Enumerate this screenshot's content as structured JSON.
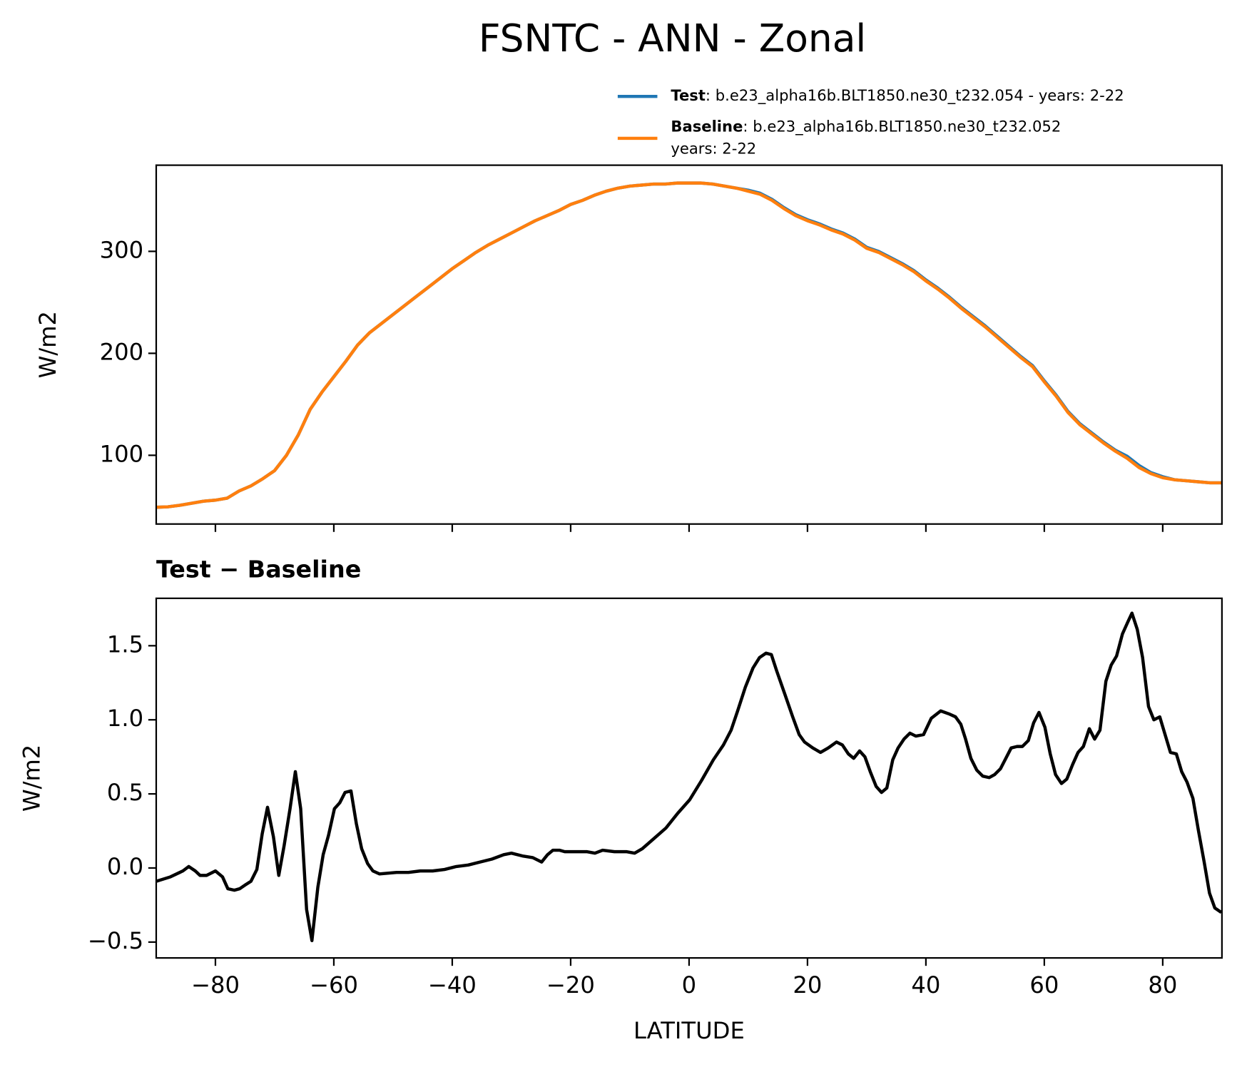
{
  "title": "FSNTC - ANN - Zonal",
  "chart_data": [
    {
      "type": "line",
      "ylabel": "W/m2",
      "x": [
        -90,
        -88,
        -86,
        -84,
        -82,
        -80,
        -78,
        -76,
        -74,
        -72,
        -70,
        -68,
        -66,
        -64,
        -62,
        -60,
        -58,
        -56,
        -54,
        -52,
        -50,
        -48,
        -46,
        -44,
        -42,
        -40,
        -38,
        -36,
        -34,
        -32,
        -30,
        -28,
        -26,
        -24,
        -22,
        -20,
        -18,
        -16,
        -14,
        -12,
        -10,
        -8,
        -6,
        -4,
        -2,
        0,
        2,
        4,
        6,
        8,
        10,
        12,
        14,
        16,
        18,
        20,
        22,
        24,
        26,
        28,
        30,
        32,
        34,
        36,
        38,
        40,
        42,
        44,
        46,
        48,
        50,
        52,
        54,
        56,
        58,
        60,
        62,
        64,
        66,
        68,
        70,
        72,
        74,
        76,
        78,
        80,
        82,
        84,
        86,
        88,
        90
      ],
      "series": [
        {
          "name": "Test",
          "label_lines": [
            ": b.e23_alpha16b.BLT1850.ne30_t232.054 - years: 2-22"
          ],
          "color": "#1f77b4",
          "values": [
            49,
            49.5,
            51,
            53,
            55,
            56,
            58,
            65,
            70,
            77,
            85,
            100,
            120,
            145,
            162,
            177,
            192,
            208,
            220,
            229,
            238,
            247,
            256,
            265,
            274,
            283,
            291,
            299,
            306,
            312,
            318,
            324,
            330,
            335,
            340,
            346,
            350,
            355,
            359,
            362,
            364,
            365,
            366,
            366,
            367,
            367,
            367,
            366,
            364,
            362,
            360,
            357,
            351,
            343,
            336,
            331,
            327,
            322,
            318,
            312,
            304,
            300,
            294,
            288,
            281,
            272,
            264,
            255,
            245,
            236,
            227,
            217,
            207,
            197,
            188,
            173,
            159,
            143,
            131,
            122,
            113,
            105,
            99,
            90,
            83,
            79,
            76,
            75,
            74,
            73,
            73
          ]
        },
        {
          "name": "Baseline",
          "label_lines": [
            ": b.e23_alpha16b.BLT1850.ne30_t232.052",
            "years: 2-22"
          ],
          "color": "#ff7f0e",
          "values": [
            49,
            49.5,
            51,
            53,
            55,
            56,
            58,
            65,
            70,
            77,
            85,
            100,
            120,
            145,
            162,
            177,
            192,
            208,
            220,
            229,
            238,
            247,
            256,
            265,
            274,
            283,
            291,
            299,
            306,
            312,
            318,
            324,
            330,
            335,
            340,
            346,
            350,
            355,
            359,
            362,
            364,
            365,
            366,
            366,
            367,
            367,
            367,
            366,
            364,
            362,
            359,
            356,
            350,
            342,
            335,
            330,
            326,
            321,
            317,
            311,
            303,
            299,
            293,
            287,
            280,
            271,
            263,
            254,
            244,
            235,
            226,
            216,
            206,
            196,
            187,
            172,
            158,
            142,
            130,
            121,
            112,
            104,
            97,
            88,
            82,
            78,
            76,
            75,
            74,
            73,
            73
          ]
        }
      ],
      "xlim": [
        -90,
        90
      ],
      "ylim": [
        32.6,
        384.5
      ],
      "xticks": [
        -80,
        -60,
        -40,
        -20,
        0,
        20,
        40,
        60,
        80
      ],
      "show_xtick_labels": false,
      "yticks": [
        100,
        200,
        300
      ],
      "legend": "upper right"
    },
    {
      "type": "line",
      "title": "Test − Baseline",
      "xlabel": "LATITUDE",
      "ylabel": "W/m2",
      "x": [
        -90,
        -87.6,
        -85.5,
        -84.5,
        -83.4,
        -82.6,
        -81.5,
        -80,
        -78.8,
        -77.9,
        -76.8,
        -75.9,
        -74.8,
        -74,
        -73,
        -72.1,
        -71.2,
        -70.2,
        -69.3,
        -68.4,
        -67.4,
        -66.5,
        -65.6,
        -64.6,
        -63.7,
        -62.7,
        -61.8,
        -60.9,
        -59.9,
        -59,
        -58.1,
        -57.1,
        -56.2,
        -55.3,
        -54.3,
        -53.4,
        -52.3,
        -49.4,
        -47.4,
        -45.4,
        -43.3,
        -41.3,
        -39.3,
        -37.3,
        -35.3,
        -33.3,
        -31.3,
        -30,
        -28,
        -26.4,
        -24.9,
        -23.9,
        -23,
        -21.9,
        -21,
        -19.3,
        -17.3,
        -15.9,
        -14.6,
        -12.6,
        -10.6,
        -9.2,
        -7.9,
        -5.9,
        -3.9,
        -1.9,
        0.1,
        2.1,
        4.1,
        5.8,
        7.1,
        8.2,
        9.5,
        10.8,
        11.9,
        13,
        13.9,
        14.8,
        16.2,
        17.5,
        18.6,
        19.5,
        20.9,
        22.2,
        23.5,
        24.9,
        25.9,
        26.9,
        27.8,
        28.8,
        29.7,
        30.6,
        31.6,
        32.5,
        33.4,
        34.4,
        35.3,
        36.3,
        37.3,
        38.3,
        39.6,
        40.9,
        42.5,
        43.9,
        45,
        45.9,
        46.7,
        47.6,
        48.6,
        49.6,
        50.7,
        51.6,
        52.6,
        53.5,
        54.4,
        55.4,
        56.3,
        57.3,
        58.2,
        59.1,
        60.1,
        61,
        61.9,
        62.9,
        63.8,
        64.8,
        65.7,
        66.6,
        67.6,
        68.5,
        69.4,
        70.4,
        71.3,
        72.2,
        73.2,
        74.1,
        74.8,
        75.7,
        76.6,
        77.6,
        78.5,
        79.5,
        80.4,
        81.3,
        82.3,
        83.2,
        84.1,
        85.1,
        86,
        87,
        87.9,
        88.8,
        89.9
      ],
      "series": [
        {
          "color": "#000000",
          "values": [
            -0.09,
            -0.06,
            -0.02,
            0.01,
            -0.02,
            -0.05,
            -0.05,
            -0.02,
            -0.06,
            -0.14,
            -0.15,
            -0.14,
            -0.11,
            -0.09,
            -0.01,
            0.23,
            0.41,
            0.21,
            -0.05,
            0.15,
            0.4,
            0.65,
            0.4,
            -0.28,
            -0.49,
            -0.13,
            0.09,
            0.22,
            0.4,
            0.44,
            0.51,
            0.52,
            0.3,
            0.13,
            0.03,
            -0.02,
            -0.04,
            -0.03,
            -0.03,
            -0.02,
            -0.02,
            -0.01,
            0.01,
            0.02,
            0.04,
            0.06,
            0.09,
            0.1,
            0.08,
            0.07,
            0.04,
            0.09,
            0.12,
            0.12,
            0.11,
            0.11,
            0.11,
            0.1,
            0.12,
            0.11,
            0.11,
            0.1,
            0.13,
            0.2,
            0.27,
            0.37,
            0.46,
            0.59,
            0.73,
            0.83,
            0.93,
            1.06,
            1.22,
            1.35,
            1.42,
            1.45,
            1.44,
            1.33,
            1.17,
            1.02,
            0.9,
            0.85,
            0.81,
            0.78,
            0.81,
            0.85,
            0.83,
            0.77,
            0.74,
            0.79,
            0.75,
            0.65,
            0.55,
            0.51,
            0.54,
            0.73,
            0.81,
            0.87,
            0.91,
            0.89,
            0.9,
            1.01,
            1.06,
            1.04,
            1.02,
            0.97,
            0.87,
            0.74,
            0.66,
            0.62,
            0.61,
            0.63,
            0.67,
            0.74,
            0.81,
            0.82,
            0.82,
            0.86,
            0.98,
            1.05,
            0.95,
            0.77,
            0.63,
            0.57,
            0.6,
            0.7,
            0.78,
            0.82,
            0.94,
            0.87,
            0.93,
            1.26,
            1.37,
            1.43,
            1.58,
            1.66,
            1.72,
            1.61,
            1.42,
            1.09,
            1.0,
            1.02,
            0.9,
            0.78,
            0.77,
            0.65,
            0.58,
            0.47,
            0.26,
            0.04,
            -0.17,
            -0.27,
            -0.3
          ]
        }
      ],
      "xlim": [
        -90,
        90
      ],
      "ylim": [
        -0.607,
        1.82
      ],
      "xticks": [
        {
          "value": -80,
          "label": "−80"
        },
        {
          "value": -60,
          "label": "−60"
        },
        {
          "value": -40,
          "label": "−40"
        },
        {
          "value": -20,
          "label": "−20"
        },
        0,
        20,
        40,
        60,
        80
      ],
      "yticks": [
        {
          "value": -0.5,
          "label": "−0.5"
        },
        {
          "value": 0,
          "label": "0.0"
        },
        0.5,
        {
          "value": 1,
          "label": "1.0"
        },
        1.5
      ]
    }
  ]
}
